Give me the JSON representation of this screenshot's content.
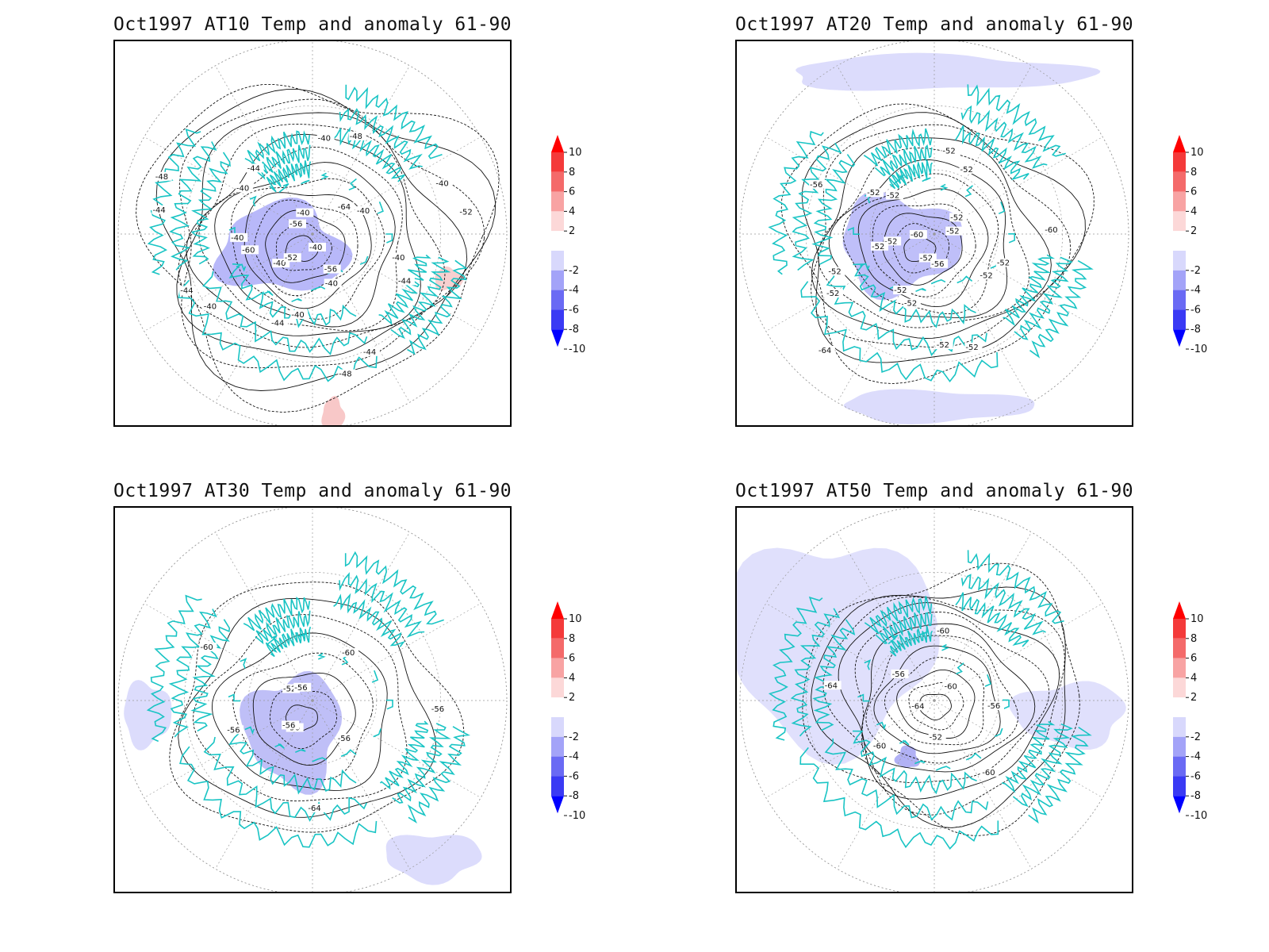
{
  "panels": [
    {
      "title": "Oct1997 AT10 Temp and anomaly 61-90",
      "contour_labels": [
        "-40",
        "-40",
        "-40",
        "-40",
        "-40",
        "-40",
        "-44",
        "-44",
        "-44",
        "-44",
        "-48",
        "-48",
        "-48",
        "-52",
        "-52",
        "-56",
        "-56",
        "-60",
        "-64",
        "-40",
        "-40",
        "-40",
        "-40",
        "-40",
        "-44",
        "-44",
        "-40"
      ],
      "anomalies": [
        {
          "label": "negative core",
          "strength": "strong"
        },
        {
          "label": "positive patches",
          "strength": "weak"
        }
      ]
    },
    {
      "title": "Oct1997 AT20 Temp and anomaly 61-90",
      "contour_labels": [
        "-52",
        "-52",
        "-52",
        "-52",
        "-52",
        "-52",
        "-52",
        "-52",
        "-52",
        "-56",
        "-60",
        "-64",
        "-60",
        "-56",
        "-52",
        "-52",
        "-52",
        "-52",
        "-52",
        "-52",
        "-52",
        "-52"
      ],
      "anomalies": [
        {
          "label": "negative core",
          "strength": "strong"
        },
        {
          "label": "negative band",
          "strength": "weak"
        }
      ]
    },
    {
      "title": "Oct1997 AT30 Temp and anomaly 61-90",
      "contour_labels": [
        "-56",
        "-52",
        "-56",
        "-56",
        "-60",
        "-64",
        "-60",
        "-56",
        "-56",
        "-56"
      ],
      "anomalies": [
        {
          "label": "negative core",
          "strength": "strong"
        },
        {
          "label": "negative patches",
          "strength": "weak"
        }
      ]
    },
    {
      "title": "Oct1997 AT50 Temp and anomaly 61-90",
      "contour_labels": [
        "-64",
        "-60",
        "-52",
        "-56",
        "-56",
        "-60",
        "-60",
        "-60",
        "-64"
      ],
      "anomalies": [
        {
          "label": "negative band",
          "strength": "weak"
        },
        {
          "label": "negative spot",
          "strength": "strong"
        }
      ]
    }
  ],
  "legend": {
    "ticks": [
      "10",
      "8",
      "6",
      "4",
      "2",
      "-2",
      "-4",
      "-6",
      "-8",
      "-10"
    ],
    "colors": [
      "#ff0000",
      "#f43a3a",
      "#f46a6a",
      "#f8a3a3",
      "#fcd8d8",
      "#ffffff",
      "#d8d8fc",
      "#a3a3f8",
      "#6a6af4",
      "#3a3af4",
      "#0000ff"
    ]
  },
  "style": {
    "coast_color": "#19c4c4",
    "grid_color": "#999999",
    "contour_color": "#111111"
  }
}
